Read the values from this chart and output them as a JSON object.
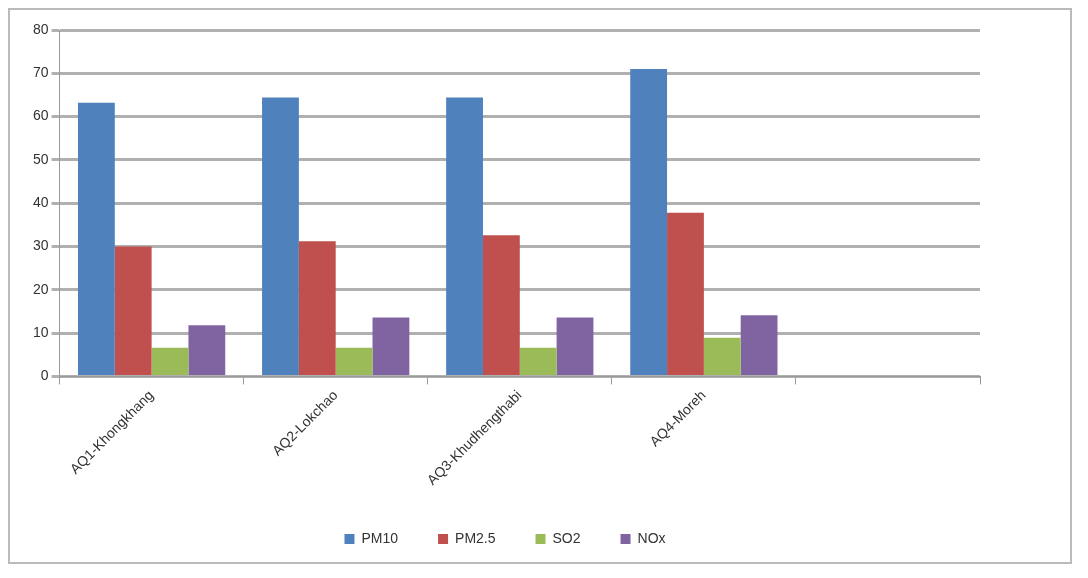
{
  "chart_data": {
    "type": "bar",
    "categories": [
      "AQ1-Khongkhang",
      "AQ2-Lokchao",
      "AQ3-Khudhengthabi",
      "AQ4-Moreh",
      null
    ],
    "series": [
      {
        "name": "PM10",
        "color": "#4f81bd",
        "values": [
          63.2,
          64.4,
          64.4,
          71,
          null
        ]
      },
      {
        "name": "PM2.5",
        "color": "#c0504d",
        "values": [
          30,
          31.2,
          32.6,
          37.8,
          null
        ]
      },
      {
        "name": "SO2",
        "color": "#9bbb59",
        "values": [
          6.6,
          6.6,
          6.6,
          8.9,
          null
        ]
      },
      {
        "name": "NOx",
        "color": "#8064a2",
        "values": [
          11.8,
          13.6,
          13.6,
          14.1,
          null
        ]
      }
    ],
    "ylim": [
      0,
      80
    ],
    "yticks": [
      0,
      10,
      20,
      30,
      40,
      50,
      60,
      70,
      80
    ],
    "grid": "y",
    "legend": "bottom"
  }
}
